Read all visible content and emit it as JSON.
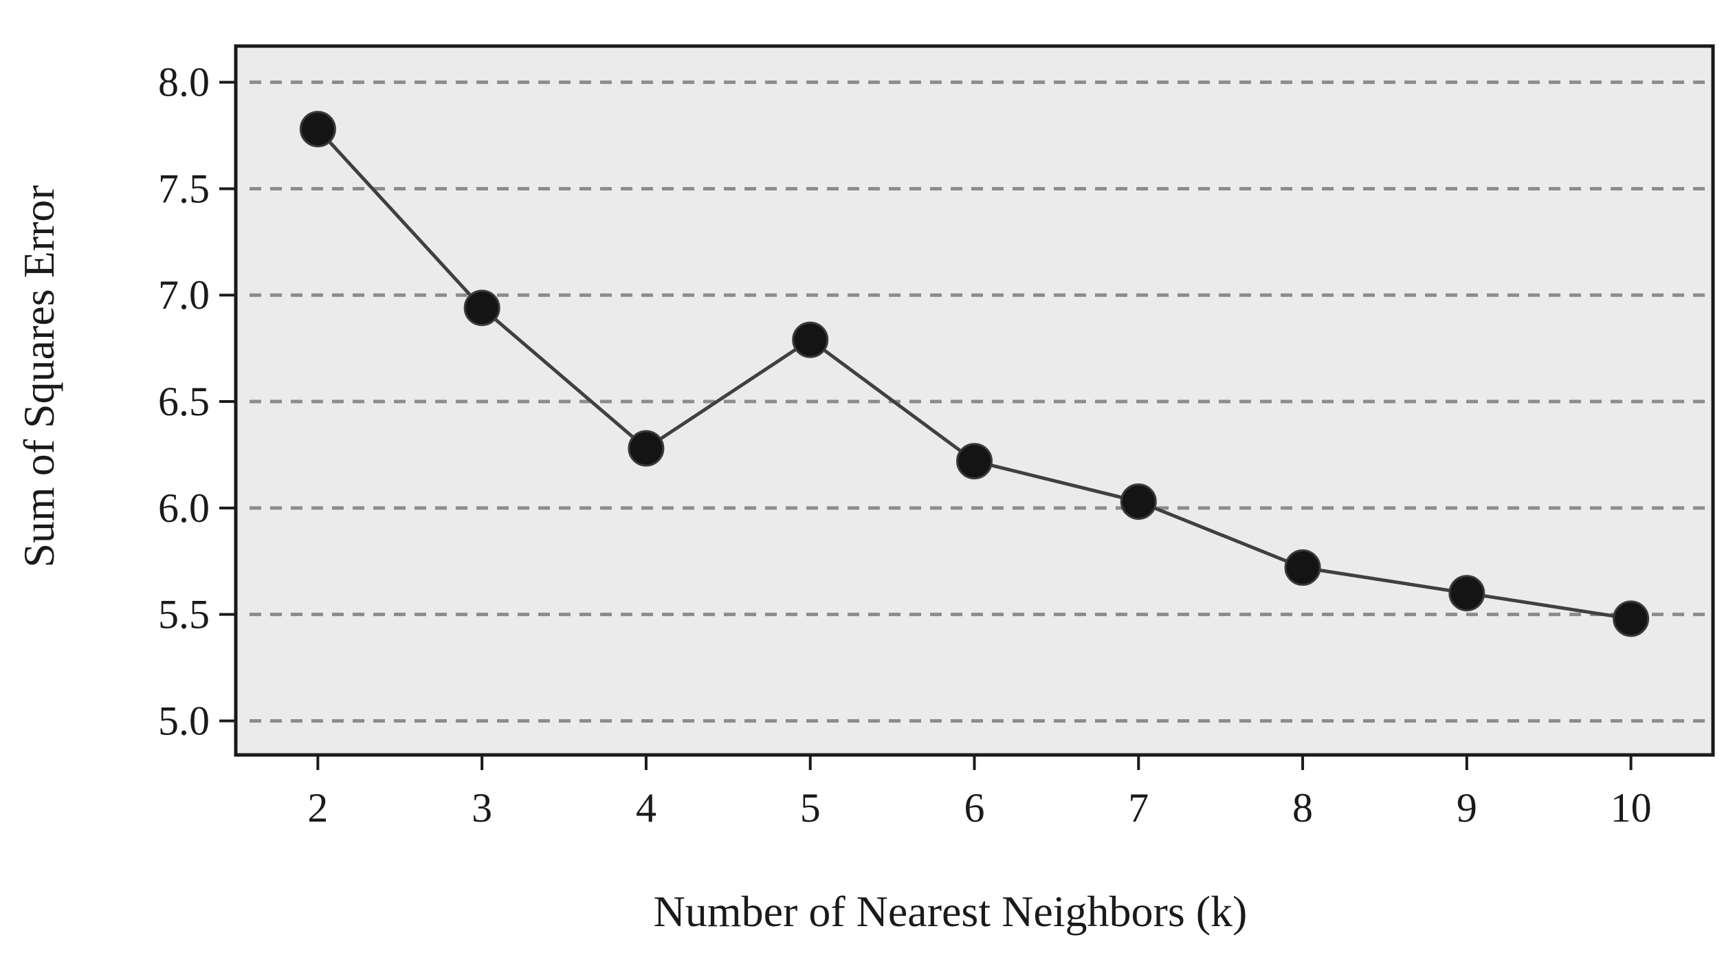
{
  "chart_data": {
    "type": "line",
    "title": "",
    "xlabel": "Number of Nearest Neighbors (k)",
    "ylabel": "Sum of Squares Error",
    "x": [
      2,
      3,
      4,
      5,
      6,
      7,
      8,
      9,
      10
    ],
    "x_tick_labels": [
      "2",
      "3",
      "4",
      "5",
      "6",
      "7",
      "8",
      "9",
      "10"
    ],
    "y_tick_labels": [
      "5.0",
      "5.5",
      "6.0",
      "6.5",
      "7.0",
      "7.5",
      "8.0"
    ],
    "y_ticks": [
      5.0,
      5.5,
      6.0,
      6.5,
      7.0,
      7.5,
      8.0
    ],
    "xlim": [
      1.5,
      10.5
    ],
    "ylim": [
      4.84,
      8.17
    ],
    "series": [
      {
        "values": [
          7.78,
          6.94,
          6.28,
          6.79,
          6.22,
          6.03,
          5.72,
          5.6,
          5.48
        ]
      }
    ],
    "grid": "horizontal-dashed",
    "legend": "none",
    "colors": {
      "plot_background": "#ebebeb",
      "grid_line": "#8c8c8c",
      "line": "#404040",
      "marker": "#141414",
      "frame": "#1a1a1a"
    }
  }
}
